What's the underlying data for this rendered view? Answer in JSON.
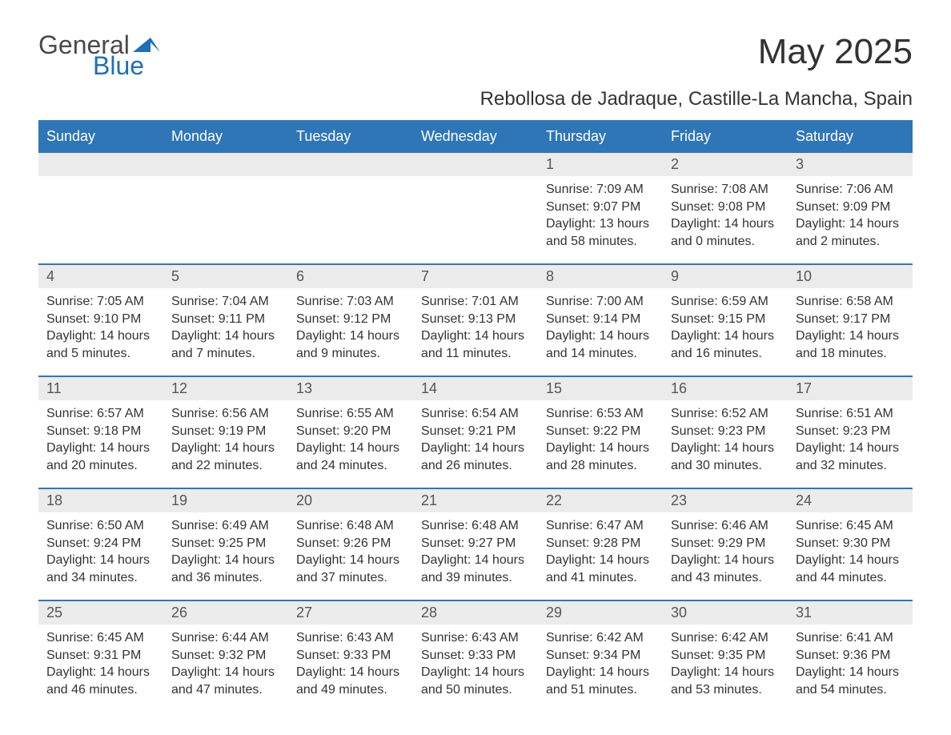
{
  "brand": {
    "text1": "General",
    "text2": "Blue",
    "arrow_color": "#1d6fb8",
    "text1_color": "#4a4a4a",
    "text2_color": "#1d6fb8"
  },
  "title": "May 2025",
  "location": "Rebollosa de Jadraque, Castille-La Mancha, Spain",
  "colors": {
    "header_bg": "#2f76b8",
    "header_text": "#ffffff",
    "daynum_bg": "#ebebeb",
    "border_top": "#2f76b8",
    "body_text": "#333333"
  },
  "weekdays": [
    "Sunday",
    "Monday",
    "Tuesday",
    "Wednesday",
    "Thursday",
    "Friday",
    "Saturday"
  ],
  "weeks": [
    [
      {
        "day": "",
        "lines": []
      },
      {
        "day": "",
        "lines": []
      },
      {
        "day": "",
        "lines": []
      },
      {
        "day": "",
        "lines": []
      },
      {
        "day": "1",
        "lines": [
          "Sunrise: 7:09 AM",
          "Sunset: 9:07 PM",
          "Daylight: 13 hours and 58 minutes."
        ]
      },
      {
        "day": "2",
        "lines": [
          "Sunrise: 7:08 AM",
          "Sunset: 9:08 PM",
          "Daylight: 14 hours and 0 minutes."
        ]
      },
      {
        "day": "3",
        "lines": [
          "Sunrise: 7:06 AM",
          "Sunset: 9:09 PM",
          "Daylight: 14 hours and 2 minutes."
        ]
      }
    ],
    [
      {
        "day": "4",
        "lines": [
          "Sunrise: 7:05 AM",
          "Sunset: 9:10 PM",
          "Daylight: 14 hours and 5 minutes."
        ]
      },
      {
        "day": "5",
        "lines": [
          "Sunrise: 7:04 AM",
          "Sunset: 9:11 PM",
          "Daylight: 14 hours and 7 minutes."
        ]
      },
      {
        "day": "6",
        "lines": [
          "Sunrise: 7:03 AM",
          "Sunset: 9:12 PM",
          "Daylight: 14 hours and 9 minutes."
        ]
      },
      {
        "day": "7",
        "lines": [
          "Sunrise: 7:01 AM",
          "Sunset: 9:13 PM",
          "Daylight: 14 hours and 11 minutes."
        ]
      },
      {
        "day": "8",
        "lines": [
          "Sunrise: 7:00 AM",
          "Sunset: 9:14 PM",
          "Daylight: 14 hours and 14 minutes."
        ]
      },
      {
        "day": "9",
        "lines": [
          "Sunrise: 6:59 AM",
          "Sunset: 9:15 PM",
          "Daylight: 14 hours and 16 minutes."
        ]
      },
      {
        "day": "10",
        "lines": [
          "Sunrise: 6:58 AM",
          "Sunset: 9:17 PM",
          "Daylight: 14 hours and 18 minutes."
        ]
      }
    ],
    [
      {
        "day": "11",
        "lines": [
          "Sunrise: 6:57 AM",
          "Sunset: 9:18 PM",
          "Daylight: 14 hours and 20 minutes."
        ]
      },
      {
        "day": "12",
        "lines": [
          "Sunrise: 6:56 AM",
          "Sunset: 9:19 PM",
          "Daylight: 14 hours and 22 minutes."
        ]
      },
      {
        "day": "13",
        "lines": [
          "Sunrise: 6:55 AM",
          "Sunset: 9:20 PM",
          "Daylight: 14 hours and 24 minutes."
        ]
      },
      {
        "day": "14",
        "lines": [
          "Sunrise: 6:54 AM",
          "Sunset: 9:21 PM",
          "Daylight: 14 hours and 26 minutes."
        ]
      },
      {
        "day": "15",
        "lines": [
          "Sunrise: 6:53 AM",
          "Sunset: 9:22 PM",
          "Daylight: 14 hours and 28 minutes."
        ]
      },
      {
        "day": "16",
        "lines": [
          "Sunrise: 6:52 AM",
          "Sunset: 9:23 PM",
          "Daylight: 14 hours and 30 minutes."
        ]
      },
      {
        "day": "17",
        "lines": [
          "Sunrise: 6:51 AM",
          "Sunset: 9:23 PM",
          "Daylight: 14 hours and 32 minutes."
        ]
      }
    ],
    [
      {
        "day": "18",
        "lines": [
          "Sunrise: 6:50 AM",
          "Sunset: 9:24 PM",
          "Daylight: 14 hours and 34 minutes."
        ]
      },
      {
        "day": "19",
        "lines": [
          "Sunrise: 6:49 AM",
          "Sunset: 9:25 PM",
          "Daylight: 14 hours and 36 minutes."
        ]
      },
      {
        "day": "20",
        "lines": [
          "Sunrise: 6:48 AM",
          "Sunset: 9:26 PM",
          "Daylight: 14 hours and 37 minutes."
        ]
      },
      {
        "day": "21",
        "lines": [
          "Sunrise: 6:48 AM",
          "Sunset: 9:27 PM",
          "Daylight: 14 hours and 39 minutes."
        ]
      },
      {
        "day": "22",
        "lines": [
          "Sunrise: 6:47 AM",
          "Sunset: 9:28 PM",
          "Daylight: 14 hours and 41 minutes."
        ]
      },
      {
        "day": "23",
        "lines": [
          "Sunrise: 6:46 AM",
          "Sunset: 9:29 PM",
          "Daylight: 14 hours and 43 minutes."
        ]
      },
      {
        "day": "24",
        "lines": [
          "Sunrise: 6:45 AM",
          "Sunset: 9:30 PM",
          "Daylight: 14 hours and 44 minutes."
        ]
      }
    ],
    [
      {
        "day": "25",
        "lines": [
          "Sunrise: 6:45 AM",
          "Sunset: 9:31 PM",
          "Daylight: 14 hours and 46 minutes."
        ]
      },
      {
        "day": "26",
        "lines": [
          "Sunrise: 6:44 AM",
          "Sunset: 9:32 PM",
          "Daylight: 14 hours and 47 minutes."
        ]
      },
      {
        "day": "27",
        "lines": [
          "Sunrise: 6:43 AM",
          "Sunset: 9:33 PM",
          "Daylight: 14 hours and 49 minutes."
        ]
      },
      {
        "day": "28",
        "lines": [
          "Sunrise: 6:43 AM",
          "Sunset: 9:33 PM",
          "Daylight: 14 hours and 50 minutes."
        ]
      },
      {
        "day": "29",
        "lines": [
          "Sunrise: 6:42 AM",
          "Sunset: 9:34 PM",
          "Daylight: 14 hours and 51 minutes."
        ]
      },
      {
        "day": "30",
        "lines": [
          "Sunrise: 6:42 AM",
          "Sunset: 9:35 PM",
          "Daylight: 14 hours and 53 minutes."
        ]
      },
      {
        "day": "31",
        "lines": [
          "Sunrise: 6:41 AM",
          "Sunset: 9:36 PM",
          "Daylight: 14 hours and 54 minutes."
        ]
      }
    ]
  ]
}
